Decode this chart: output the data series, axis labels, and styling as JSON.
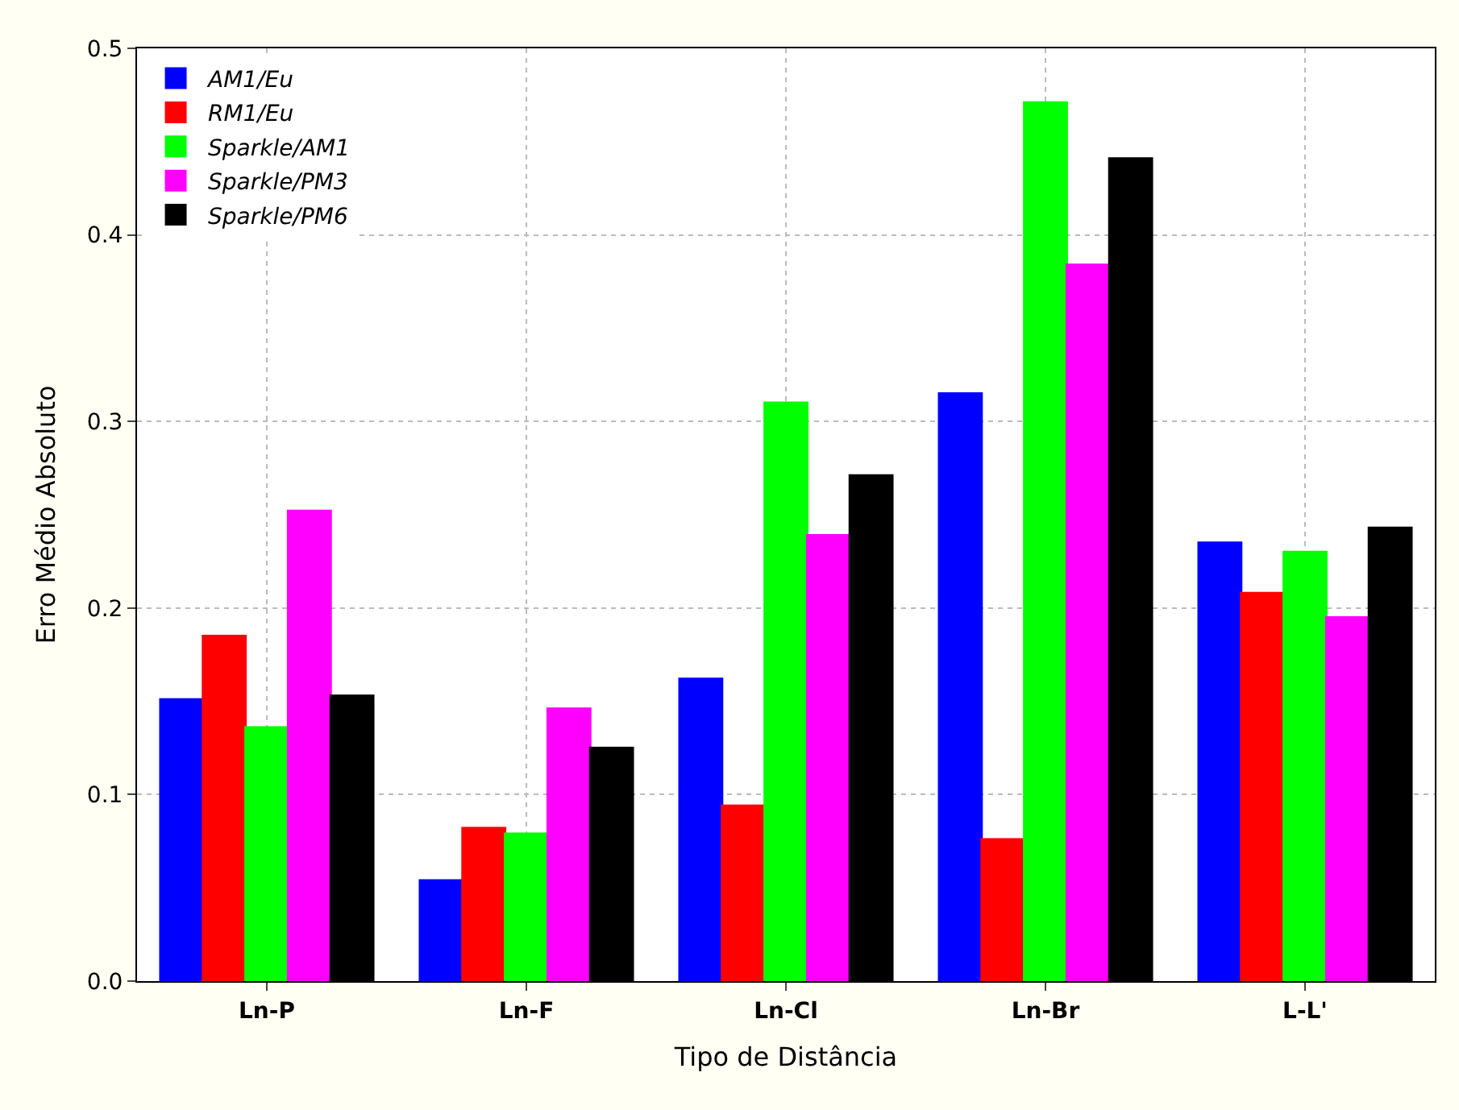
{
  "chart_data": {
    "type": "bar",
    "xlabel": "Tipo de Distância",
    "ylabel": "Erro Médio Absoluto",
    "categories": [
      "Ln-P",
      "Ln-F",
      "Ln-Cl",
      "Ln-Br",
      "L-L'"
    ],
    "series": [
      {
        "name": "AM1/Eu",
        "color": "#0000ff",
        "values": [
          0.151,
          0.054,
          0.162,
          0.315,
          0.235
        ]
      },
      {
        "name": "RM1/Eu",
        "color": "#ff0000",
        "values": [
          0.185,
          0.082,
          0.094,
          0.076,
          0.208
        ]
      },
      {
        "name": "Sparkle/AM1",
        "color": "#00ff00",
        "values": [
          0.136,
          0.079,
          0.31,
          0.471,
          0.23
        ]
      },
      {
        "name": "Sparkle/PM3",
        "color": "#ff00ff",
        "values": [
          0.252,
          0.146,
          0.239,
          0.384,
          0.195
        ]
      },
      {
        "name": "Sparkle/PM6",
        "color": "#000000",
        "values": [
          0.153,
          0.125,
          0.271,
          0.441,
          0.243
        ]
      }
    ],
    "ylim": [
      0,
      0.5
    ],
    "yticks": [
      {
        "value": 0,
        "label": "0.0"
      },
      0.1,
      0.2,
      0.3,
      0.4,
      0.5
    ],
    "grid": true,
    "legend": "top left"
  }
}
